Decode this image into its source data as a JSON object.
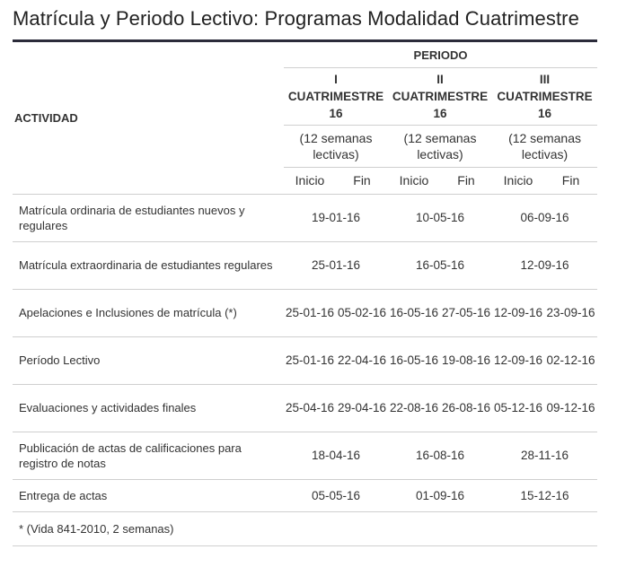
{
  "title": "Matrícula y Periodo Lectivo: Programas Modalidad Cuatrimestre",
  "header": {
    "actividad": "ACTIVIDAD",
    "periodo": "PERIODO",
    "cuatrimestres": [
      {
        "line1": "I",
        "line2": "CUATRIMESTRE",
        "line3": "16",
        "weeks1": "(12 semanas",
        "weeks2": "lectivas)"
      },
      {
        "line1": "II",
        "line2": "CUATRIMESTRE",
        "line3": "16",
        "weeks1": "(12 semanas",
        "weeks2": "lectivas)"
      },
      {
        "line1": "III",
        "line2": "CUATRIMESTRE",
        "line3": "16",
        "weeks1": "(12 semanas",
        "weeks2": "lectivas)"
      }
    ],
    "inicio": "Inicio",
    "fin": "Fin"
  },
  "rows": [
    {
      "activity": "Matrícula ordinaria de estudiantes nuevos y regulares",
      "dates": [
        "19-01-16",
        "10-05-16",
        "06-09-16"
      ]
    },
    {
      "activity": "Matrícula extraordinaria de estudiantes regulares",
      "dates": [
        "25-01-16",
        "16-05-16",
        "12-09-16"
      ]
    },
    {
      "activity": "Apelaciones e Inclusiones de matrícula (*)",
      "dates": [
        "25-01-16",
        "05-02-16",
        "16-05-16",
        "27-05-16",
        "12-09-16",
        "23-09-16"
      ]
    },
    {
      "activity": "Período Lectivo",
      "dates": [
        "25-01-16",
        "22-04-16",
        "16-05-16",
        "19-08-16",
        "12-09-16",
        "02-12-16"
      ]
    },
    {
      "activity": "Evaluaciones y actividades finales",
      "dates": [
        "25-04-16",
        "29-04-16",
        "22-08-16",
        "26-08-16",
        "05-12-16",
        "09-12-16"
      ]
    },
    {
      "activity": "Publicación de actas de calificaciones para registro de notas",
      "dates": [
        "18-04-16",
        "16-08-16",
        "28-11-16"
      ]
    },
    {
      "activity": "Entrega de actas",
      "dates": [
        "05-05-16",
        "01-09-16",
        "15-12-16"
      ]
    }
  ],
  "footnote": "* (Vida 841-2010, 2 semanas)"
}
